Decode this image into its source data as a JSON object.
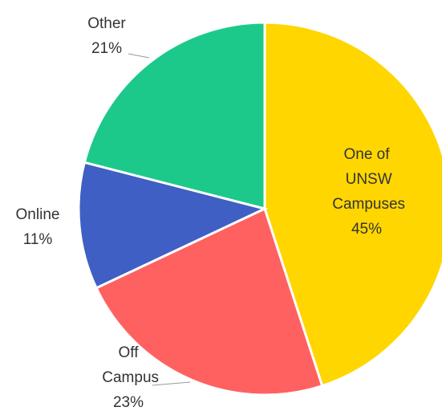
{
  "chart_data": {
    "type": "pie",
    "categories": [
      "One of UNSW Campuses",
      "Off Campus",
      "Online",
      "Other"
    ],
    "values": [
      45,
      23,
      11,
      21
    ],
    "value_labels": [
      "45%",
      "23%",
      "11%",
      "21%"
    ],
    "colors": [
      "#ffd600",
      "#ff6161",
      "#3f5fc4",
      "#1dc98a"
    ]
  }
}
